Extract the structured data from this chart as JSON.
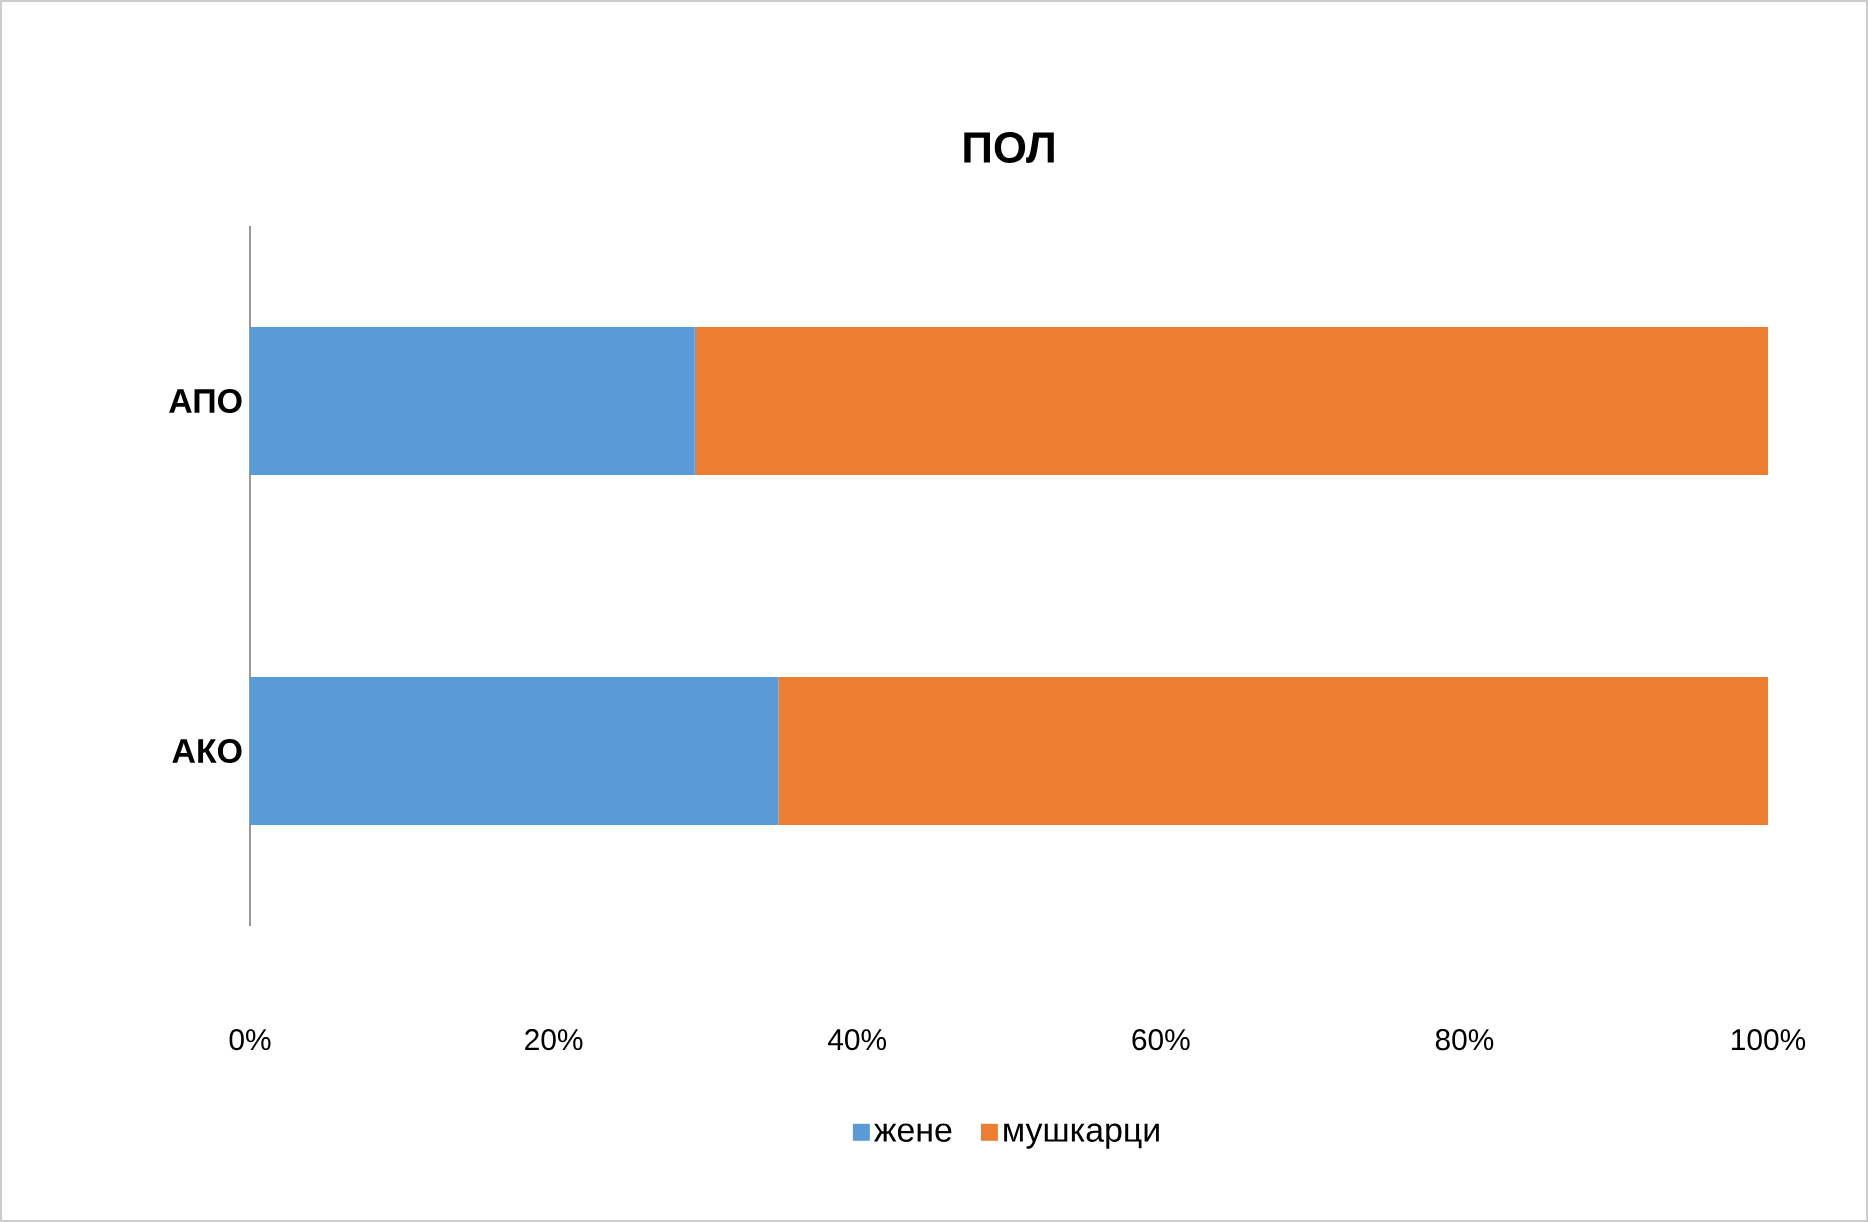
{
  "chart_data": {
    "type": "bar",
    "orientation": "horizontal",
    "stacked": true,
    "title": "ПОЛ",
    "categories": [
      "АПО",
      "АКО"
    ],
    "series": [
      {
        "name": "жене",
        "color": "#5b9bd5",
        "values": [
          29.3,
          34.8
        ]
      },
      {
        "name": "мушкарци",
        "color": "#ed7d31",
        "values": [
          70.7,
          65.2
        ]
      }
    ],
    "xlim": [
      0,
      100
    ],
    "xticks": [
      {
        "value": 0,
        "label": "0%"
      },
      {
        "value": 20,
        "label": "20%"
      },
      {
        "value": 40,
        "label": "40%"
      },
      {
        "value": 60,
        "label": "60%"
      },
      {
        "value": 80,
        "label": "80%"
      },
      {
        "value": 100,
        "label": "100%"
      }
    ],
    "grid": false,
    "legend": "bottom"
  }
}
